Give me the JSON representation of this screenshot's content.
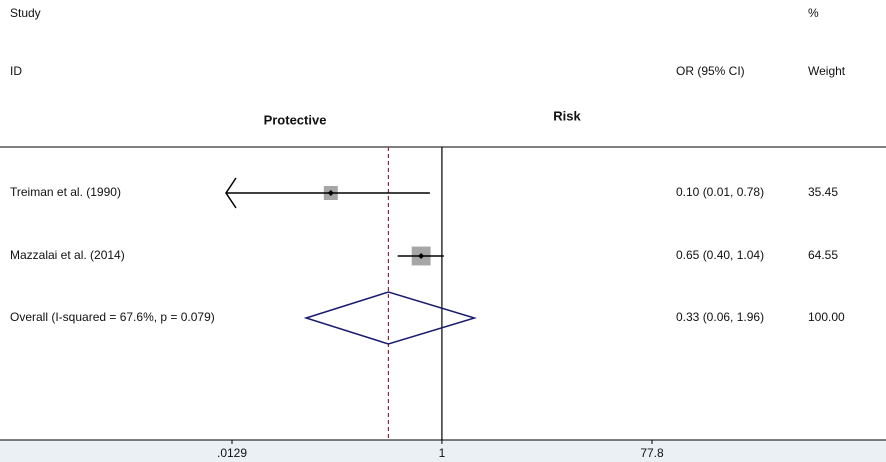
{
  "chart_data": {
    "type": "forest",
    "header": {
      "study": "Study",
      "percent": "%",
      "id": "ID",
      "estimate": "OR (95% CI)",
      "weight": "Weight"
    },
    "left_label": "Protective",
    "right_label": "Risk",
    "categories": [
      "Treiman et al.  (1990)",
      "Mazzalai et al.  (2014)"
    ],
    "values": [
      0.1,
      0.65
    ],
    "lower": [
      0.01,
      0.4
    ],
    "upper": [
      0.78,
      1.04
    ],
    "value_labels": [
      "0.10 (0.01, 0.78)",
      "0.65 (0.40, 1.04)"
    ],
    "weights": [
      35.45,
      64.55
    ],
    "overall": {
      "name": "Overall  (I-squared = 67.6%, p = 0.079)",
      "value": 0.33,
      "lower": 0.06,
      "upper": 1.96,
      "value_label": "0.33 (0.06, 1.96)",
      "weight": 100,
      "weight_label": "100.00"
    },
    "xlim": [
      0.0129,
      77.8
    ],
    "xticks": [
      {
        "value": 0.0129,
        "label": ".0129"
      },
      1,
      77.8
    ],
    "log_x": true,
    "null_line": 1,
    "box_color": "#a6a6a6",
    "diamond_color": "#1a1a6e",
    "overall_line_color": "#8b2a3a"
  }
}
